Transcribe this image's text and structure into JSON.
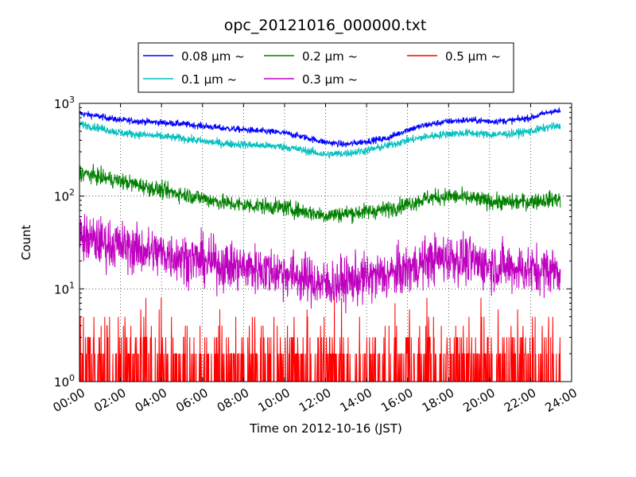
{
  "chart_data": {
    "type": "line",
    "title": "opc_20121016_000000.txt",
    "xlabel": "Time on 2012-10-16 (JST)",
    "ylabel": "Count",
    "xlim": [
      "00:00",
      "24:00"
    ],
    "ylim": [
      1,
      1000
    ],
    "yscale": "log",
    "grid": true,
    "legend_position": "top-center",
    "x_ticks": [
      "00:00",
      "02:00",
      "04:00",
      "06:00",
      "08:00",
      "10:00",
      "12:00",
      "14:00",
      "16:00",
      "18:00",
      "20:00",
      "22:00",
      "24:00"
    ],
    "y_ticks": [
      {
        "base": "10",
        "exp": "0",
        "value": 1
      },
      {
        "base": "10",
        "exp": "1",
        "value": 10
      },
      {
        "base": "10",
        "exp": "2",
        "value": 100
      },
      {
        "base": "10",
        "exp": "3",
        "value": 1000
      }
    ],
    "x_hours": [
      0,
      1,
      2,
      3,
      4,
      5,
      6,
      7,
      8,
      9,
      10,
      11,
      12,
      13,
      14,
      15,
      16,
      17,
      18,
      19,
      20,
      21,
      22,
      23
    ],
    "series": [
      {
        "name": "0.08 μm ~",
        "color": "#0000ff",
        "noise": 0.04,
        "values": [
          780,
          720,
          660,
          640,
          620,
          600,
          570,
          540,
          520,
          500,
          480,
          430,
          380,
          360,
          390,
          420,
          520,
          590,
          640,
          660,
          640,
          650,
          700,
          820
        ]
      },
      {
        "name": "0.1 μm ~",
        "color": "#00bfbf",
        "noise": 0.05,
        "values": [
          600,
          540,
          480,
          460,
          440,
          420,
          390,
          370,
          360,
          350,
          340,
          310,
          280,
          290,
          310,
          350,
          400,
          440,
          470,
          480,
          460,
          470,
          500,
          560
        ]
      },
      {
        "name": "0.2 μm ~",
        "color": "#008000",
        "noise": 0.1,
        "values": [
          180,
          160,
          145,
          130,
          115,
          105,
          95,
          85,
          80,
          78,
          75,
          68,
          62,
          65,
          68,
          72,
          82,
          95,
          100,
          95,
          88,
          85,
          88,
          92
        ]
      },
      {
        "name": "0.3 μm ~",
        "color": "#bf00bf",
        "noise": 0.3,
        "values": [
          36,
          32,
          29,
          26,
          24,
          22,
          20,
          18,
          17,
          16,
          15,
          13,
          11,
          12,
          13,
          14,
          16,
          20,
          22,
          20,
          18,
          17,
          16,
          16
        ]
      },
      {
        "name": "0.5 μm ~",
        "color": "#ff0000",
        "noise": 0,
        "values": [
          1.6,
          1.5,
          1.4,
          1.4,
          1.3,
          1.3,
          1.3,
          1.2,
          1.2,
          1.2,
          1.1,
          1.1,
          1.1,
          1.1,
          1.1,
          1.1,
          1.2,
          1.2,
          1.2,
          1.2,
          1.2,
          1.2,
          1.2,
          1.2
        ]
      }
    ]
  }
}
